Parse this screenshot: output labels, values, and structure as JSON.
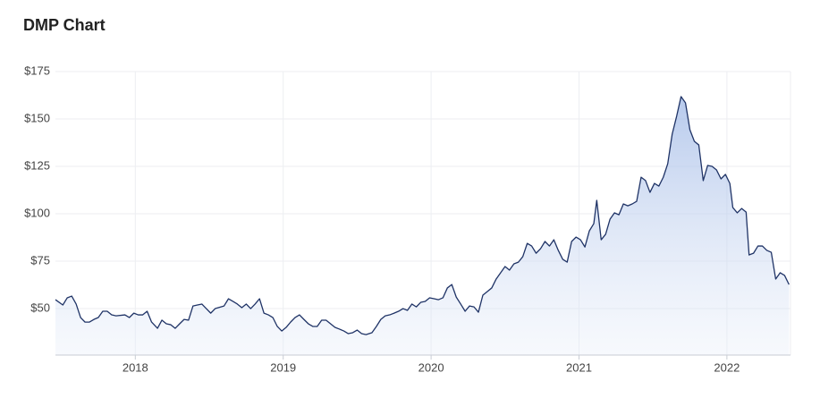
{
  "chart_data": {
    "type": "area",
    "title": "DMP Chart",
    "color": "#1f3366",
    "grid": true,
    "xlim": [
      2017.46,
      2022.43
    ],
    "ylim": [
      25.5,
      175
    ],
    "xticks": [
      2018,
      2019,
      2020,
      2021,
      2022
    ],
    "yticks": [
      {
        "value": 50,
        "label": "$50"
      },
      {
        "value": 75,
        "label": "$75"
      },
      {
        "value": 100,
        "label": "$100"
      },
      {
        "value": 125,
        "label": "$125"
      },
      {
        "value": 150,
        "label": "$150"
      },
      {
        "value": 175,
        "label": "$175"
      }
    ],
    "x": [
      2017.46,
      2017.51,
      2017.54,
      2017.57,
      2017.6,
      2017.63,
      2017.66,
      2017.69,
      2017.72,
      2017.75,
      2017.78,
      2017.81,
      2017.84,
      2017.87,
      2017.93,
      2017.96,
      2017.99,
      2018.02,
      2018.05,
      2018.08,
      2018.11,
      2018.15,
      2018.18,
      2018.21,
      2018.24,
      2018.27,
      2018.3,
      2018.33,
      2018.36,
      2018.39,
      2018.42,
      2018.45,
      2018.48,
      2018.51,
      2018.54,
      2018.6,
      2018.63,
      2018.66,
      2018.69,
      2018.72,
      2018.75,
      2018.78,
      2018.81,
      2018.84,
      2018.87,
      2018.9,
      2018.93,
      2018.96,
      2018.99,
      2019.02,
      2019.05,
      2019.08,
      2019.11,
      2019.14,
      2019.17,
      2019.2,
      2019.23,
      2019.26,
      2019.29,
      2019.32,
      2019.35,
      2019.38,
      2019.41,
      2019.44,
      2019.47,
      2019.5,
      2019.53,
      2019.56,
      2019.6,
      2019.63,
      2019.66,
      2019.69,
      2019.72,
      2019.75,
      2019.78,
      2019.81,
      2019.84,
      2019.87,
      2019.9,
      2019.93,
      2019.96,
      2019.99,
      2020.02,
      2020.05,
      2020.08,
      2020.11,
      2020.14,
      2020.17,
      2020.2,
      2020.23,
      2020.26,
      2020.29,
      2020.32,
      2020.35,
      2020.38,
      2020.41,
      2020.44,
      2020.47,
      2020.5,
      2020.53,
      2020.56,
      2020.59,
      2020.62,
      2020.65,
      2020.68,
      2020.71,
      2020.74,
      2020.77,
      2020.8,
      2020.83,
      2020.86,
      2020.89,
      2020.92,
      2020.95,
      2020.98,
      2021.01,
      2021.04,
      2021.07,
      2021.1,
      2021.12,
      2021.15,
      2021.18,
      2021.21,
      2021.24,
      2021.27,
      2021.3,
      2021.33,
      2021.36,
      2021.39,
      2021.42,
      2021.45,
      2021.48,
      2021.51,
      2021.54,
      2021.57,
      2021.6,
      2021.63,
      2021.66,
      2021.69,
      2021.72,
      2021.75,
      2021.78,
      2021.81,
      2021.84,
      2021.87,
      2021.9,
      2021.93,
      2021.96,
      2021.99,
      2022.02,
      2022.04,
      2022.07,
      2022.1,
      2022.13,
      2022.15,
      2022.18,
      2022.21,
      2022.24,
      2022.27,
      2022.3,
      2022.33,
      2022.36,
      2022.39,
      2022.42
    ],
    "values": [
      54.7,
      51.9,
      55.7,
      56.6,
      52.4,
      45.3,
      42.9,
      42.9,
      44.3,
      45.3,
      48.6,
      48.6,
      46.7,
      46.2,
      46.7,
      45.3,
      47.6,
      46.7,
      46.7,
      48.6,
      42.9,
      39.6,
      43.9,
      42.0,
      41.5,
      39.6,
      42.0,
      44.3,
      43.9,
      51.4,
      51.9,
      52.4,
      50.0,
      47.6,
      50.0,
      51.4,
      55.2,
      53.8,
      52.4,
      50.5,
      52.4,
      50.0,
      52.4,
      55.2,
      47.6,
      46.7,
      45.3,
      40.6,
      38.2,
      40.1,
      42.9,
      45.3,
      46.7,
      44.3,
      42.0,
      40.6,
      40.6,
      43.9,
      43.9,
      42.0,
      40.1,
      39.2,
      38.2,
      36.8,
      37.3,
      38.7,
      36.8,
      36.3,
      37.3,
      40.6,
      44.3,
      46.2,
      46.7,
      47.6,
      48.6,
      50.0,
      49.1,
      52.4,
      50.9,
      53.3,
      53.8,
      55.7,
      55.2,
      54.7,
      55.7,
      60.9,
      62.7,
      56.1,
      52.4,
      48.6,
      51.4,
      50.9,
      48.1,
      57.1,
      59.0,
      60.9,
      65.6,
      68.9,
      72.2,
      70.3,
      73.6,
      74.5,
      77.4,
      84.4,
      83.0,
      79.2,
      81.6,
      85.4,
      83.0,
      86.3,
      80.7,
      76.0,
      74.5,
      85.4,
      87.7,
      86.3,
      82.5,
      91.0,
      94.8,
      107.1,
      86.3,
      89.2,
      97.2,
      100.5,
      99.5,
      105.2,
      104.2,
      105.2,
      106.6,
      119.3,
      117.5,
      111.3,
      116.0,
      114.6,
      119.3,
      126.4,
      142.0,
      151.4,
      161.8,
      158.5,
      144.3,
      138.2,
      136.3,
      117.5,
      125.5,
      125.0,
      123.1,
      118.4,
      120.8,
      116.0,
      103.3,
      100.5,
      102.8,
      100.9,
      78.3,
      79.2,
      83.0,
      83.0,
      80.7,
      79.7,
      65.6,
      68.9,
      67.5,
      62.7
    ]
  }
}
